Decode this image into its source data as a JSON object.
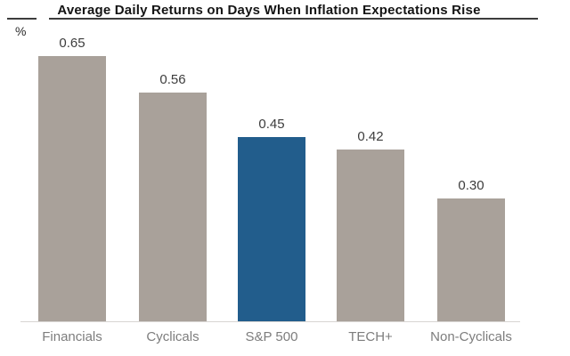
{
  "chart": {
    "title": "Average Daily Returns on Days When Inflation Expectations Rise",
    "unit": "%"
  },
  "chart_data": {
    "type": "bar",
    "title": "Average Daily Returns on Days When Inflation Expectations Rise",
    "categories": [
      "Financials",
      "Cyclicals",
      "S&P 500",
      "TECH+",
      "Non-Cyclicals"
    ],
    "values": [
      0.65,
      0.56,
      0.45,
      0.42,
      0.3
    ],
    "value_labels": [
      "0.65",
      "0.56",
      "0.45",
      "0.42",
      "0.30"
    ],
    "xlabel": "",
    "ylabel": "%",
    "ylim": [
      0,
      0.7
    ],
    "grid": false,
    "legend": false,
    "highlight_index": 2,
    "colors": {
      "bar": "#a9a19a",
      "highlight_bar": "#225d8c",
      "axis_line": "#d8d5d2",
      "value_text": "#3d3d3d",
      "category_text": "#7d7d7d",
      "title_text": "#141414"
    }
  }
}
